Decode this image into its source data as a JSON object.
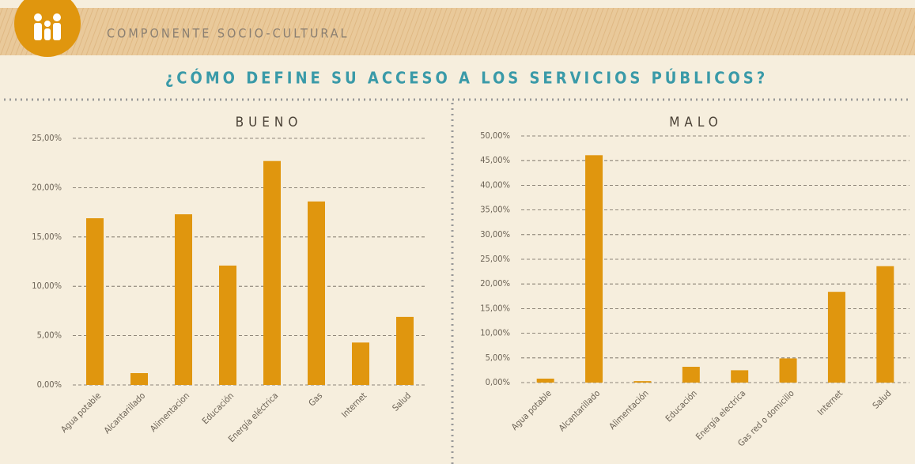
{
  "header": {
    "section": "COMPONENTE SOCIO-CULTURAL",
    "question": "¿CÓMO DEFINE SU ACCESO A LOS SERVICIOS PÚBLICOS?"
  },
  "chart_data": [
    {
      "type": "bar",
      "title": "BUENO",
      "categories": [
        "Agua potable",
        "Alcantarillado",
        "Alimentacion",
        "Educación",
        "Energía eléctrica",
        "Gas",
        "Internet",
        "Salud"
      ],
      "values": [
        16.9,
        1.2,
        17.3,
        12.1,
        22.7,
        18.6,
        4.3,
        6.9
      ],
      "color": "#e0960e",
      "ylim": [
        0,
        25
      ],
      "yticks": [
        {
          "value": 0,
          "label": "0,00%"
        },
        {
          "value": 5,
          "label": "5,00%"
        },
        {
          "value": 10,
          "label": "10,00%"
        },
        {
          "value": 15,
          "label": "15,00%"
        },
        {
          "value": 20,
          "label": "20,00%"
        },
        {
          "value": 25,
          "label": "25,00%"
        }
      ],
      "grid": true
    },
    {
      "type": "bar",
      "title": "MALO",
      "categories": [
        "Agua potable",
        "Alcantarillado",
        "Alimentación",
        "Educación",
        "Energía electrica",
        "Gas red o domicilio",
        "Internet",
        "Salud"
      ],
      "values": [
        0.8,
        46.1,
        0.3,
        3.2,
        2.5,
        4.9,
        18.4,
        23.6
      ],
      "color": "#e0960e",
      "ylim": [
        0,
        50
      ],
      "yticks": [
        {
          "value": 0,
          "label": "0,00%"
        },
        {
          "value": 5,
          "label": "5,00%"
        },
        {
          "value": 10,
          "label": "10,00%"
        },
        {
          "value": 15,
          "label": "15,00%"
        },
        {
          "value": 20,
          "label": "20,00%"
        },
        {
          "value": 25,
          "label": "25,00%"
        },
        {
          "value": 30,
          "label": "30,00%"
        },
        {
          "value": 35,
          "label": "35,00%"
        },
        {
          "value": 40,
          "label": "40,00%"
        },
        {
          "value": 45,
          "label": "45,00%"
        },
        {
          "value": 50,
          "label": "50,00%"
        }
      ],
      "grid": true
    }
  ]
}
